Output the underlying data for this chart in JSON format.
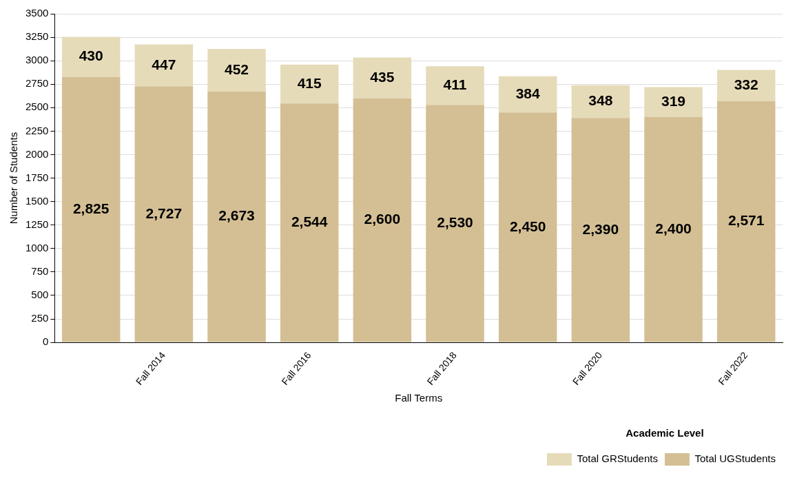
{
  "chart_data": {
    "type": "bar",
    "stacked": true,
    "xlabel": "Fall Terms",
    "ylabel": "Number of Students",
    "legend_title": "Academic Level",
    "legend": "bottom right",
    "grid": "y",
    "categories": [
      null,
      "Fall 2014",
      null,
      "Fall 2016",
      null,
      "Fall 2018",
      null,
      "Fall 2020",
      null,
      "Fall 2022"
    ],
    "ylim": [
      0,
      3500
    ],
    "yticks": [
      0,
      250,
      500,
      750,
      1000,
      1250,
      1500,
      1750,
      2000,
      2250,
      2500,
      2750,
      3000,
      3250,
      3500
    ],
    "series": [
      {
        "name": "Total UGStudents",
        "color": "#d4bf94",
        "values": [
          2825,
          2727,
          2673,
          2544,
          2600,
          2530,
          2450,
          2390,
          2400,
          2571
        ],
        "value_labels": [
          "2,825",
          "2,727",
          "2,673",
          "2,544",
          "2,600",
          "2,530",
          "2,450",
          "2,390",
          "2,400",
          "2,571"
        ]
      },
      {
        "name": "Total GRStudents",
        "color": "#e6dbb9",
        "values": [
          430,
          447,
          452,
          415,
          435,
          411,
          384,
          348,
          319,
          332
        ],
        "value_labels": [
          "430",
          "447",
          "452",
          "415",
          "435",
          "411",
          "384",
          "348",
          "319",
          "332"
        ]
      }
    ]
  }
}
